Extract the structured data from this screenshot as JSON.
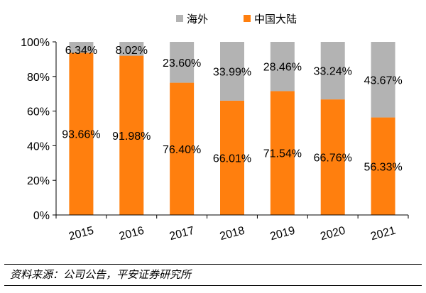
{
  "chart_data": {
    "type": "bar",
    "stacked": true,
    "percent": true,
    "title": "",
    "xlabel": "",
    "ylabel": "",
    "ylim": [
      0,
      100
    ],
    "yticks": [
      "0%",
      "20%",
      "40%",
      "60%",
      "80%",
      "100%"
    ],
    "categories": [
      "2015",
      "2016",
      "2017",
      "2018",
      "2019",
      "2020",
      "2021"
    ],
    "series": [
      {
        "name": "中国大陆",
        "color": "#FF7F0E",
        "values": [
          93.66,
          91.98,
          76.4,
          66.01,
          71.54,
          66.76,
          56.33
        ],
        "labels": [
          "93.66%",
          "91.98%",
          "76.40%",
          "66.01%",
          "71.54%",
          "66.76%",
          "56.33%"
        ]
      },
      {
        "name": "海外",
        "color": "#B3B3B3",
        "values": [
          6.34,
          8.02,
          23.6,
          33.99,
          28.46,
          33.24,
          43.67
        ],
        "labels": [
          "6.34%",
          "8.02%",
          "23.60%",
          "33.99%",
          "28.46%",
          "33.24%",
          "43.67%"
        ]
      }
    ],
    "legend": {
      "position": "top",
      "order": [
        "海外",
        "中国大陆"
      ]
    },
    "grid": false
  },
  "source_note": "资料来源：公司公告，平安证券研究所"
}
